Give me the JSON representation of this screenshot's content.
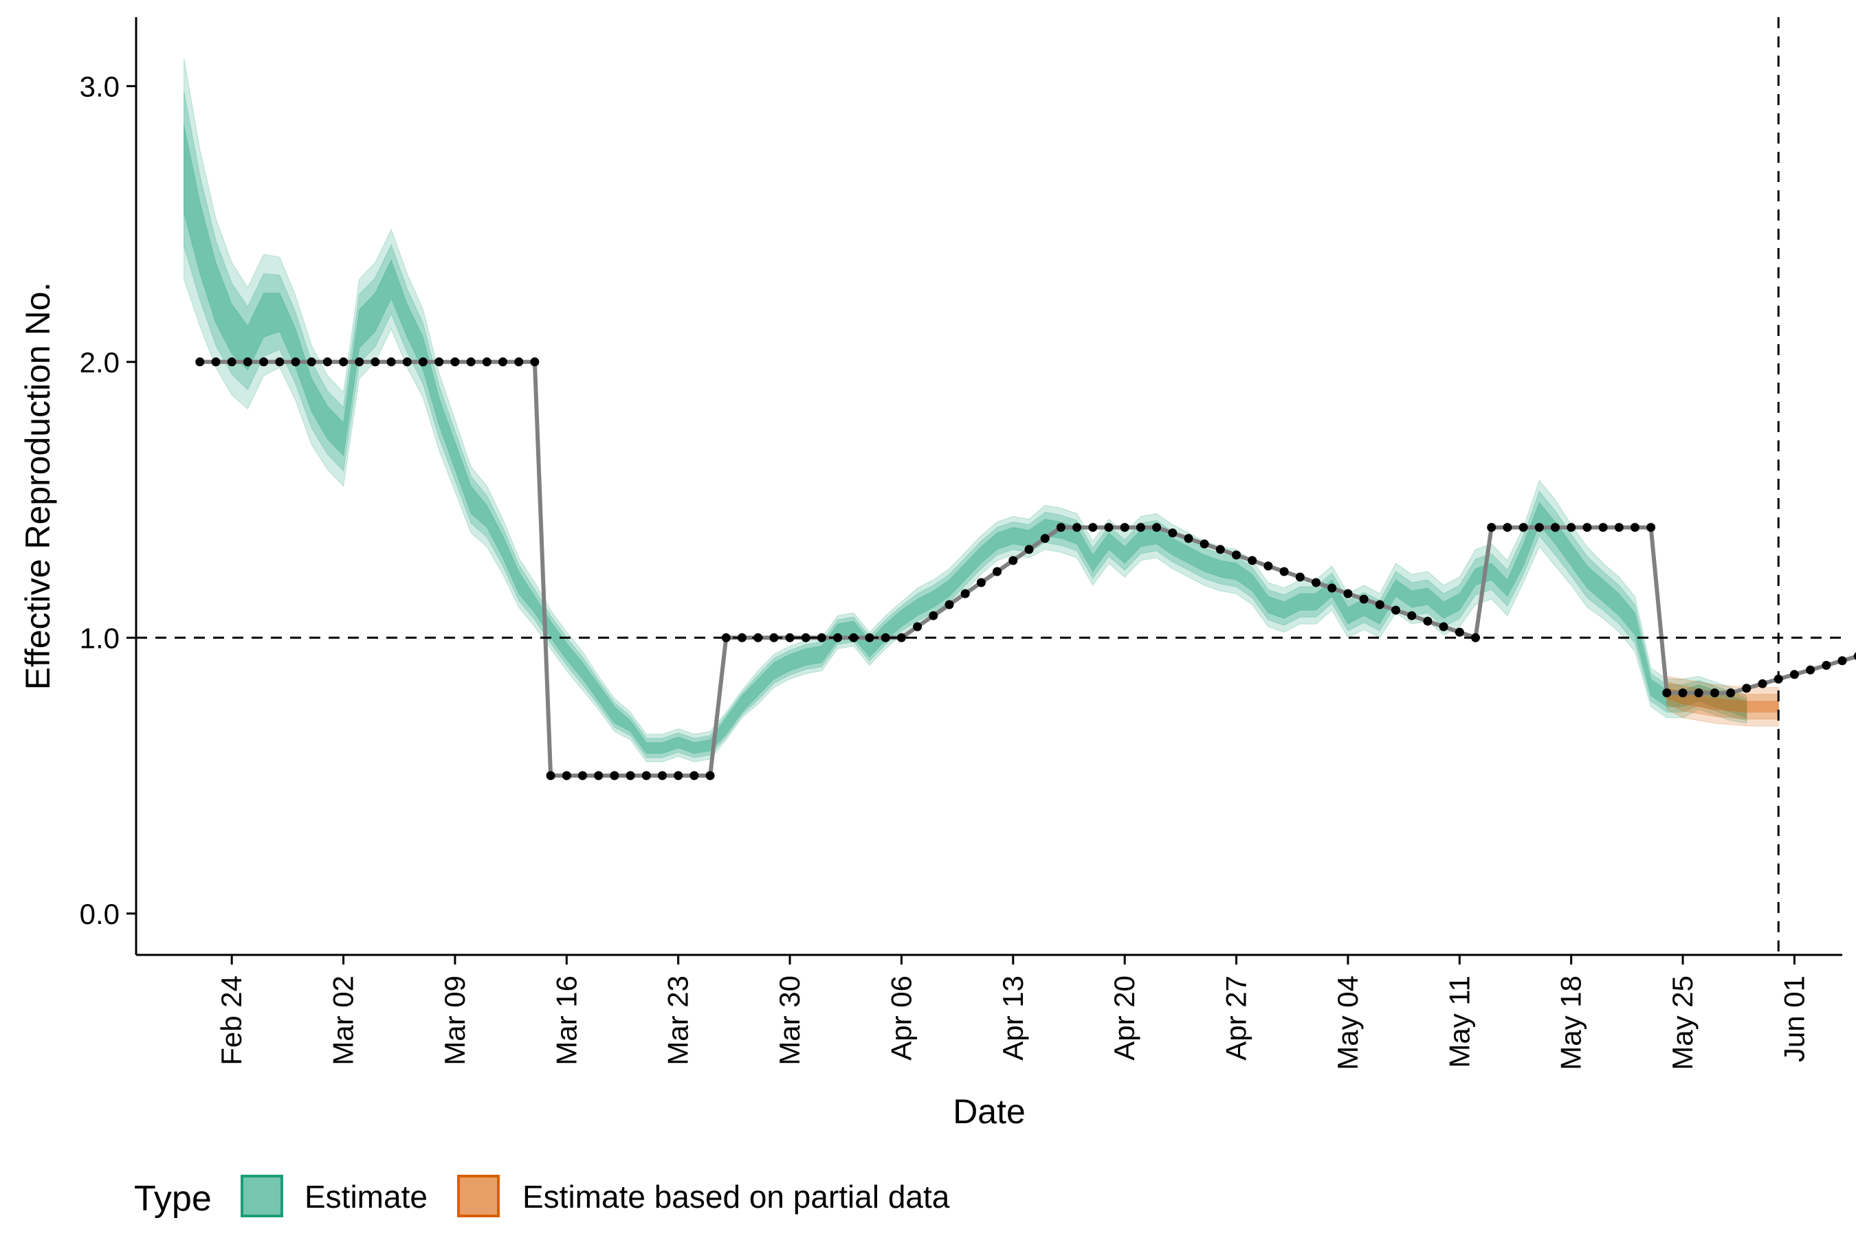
{
  "chart_data": {
    "type": "line",
    "xlabel": "Date",
    "ylabel": "Effective Reproduction No.",
    "x_range": [
      "2020-02-18",
      "2020-06-04"
    ],
    "ylim": [
      -0.15,
      3.25
    ],
    "y_ticks": [
      0.0,
      1.0,
      2.0,
      3.0
    ],
    "y_tick_labels": [
      "0.0",
      "1.0",
      "2.0",
      "3.0"
    ],
    "x_ticks": [
      "2020-02-24",
      "2020-03-02",
      "2020-03-09",
      "2020-03-16",
      "2020-03-23",
      "2020-03-30",
      "2020-04-06",
      "2020-04-13",
      "2020-04-20",
      "2020-04-27",
      "2020-05-04",
      "2020-05-11",
      "2020-05-18",
      "2020-05-25",
      "2020-06-01"
    ],
    "x_tick_labels": [
      "Feb 24",
      "Mar 02",
      "Mar 09",
      "Mar 16",
      "Mar 23",
      "Mar 30",
      "Apr 06",
      "Apr 13",
      "Apr 20",
      "Apr 27",
      "May 04",
      "May 11",
      "May 18",
      "May 25",
      "Jun 01"
    ],
    "reference_lines": {
      "hline": 1.0,
      "vline": "2020-05-31"
    },
    "grid": false,
    "legend": {
      "title": "Type",
      "position": "bottom",
      "items": [
        {
          "label": "Estimate",
          "color": "#1b9e77"
        },
        {
          "label": "Estimate based on partial data",
          "color": "#d95f02"
        }
      ]
    },
    "colors": {
      "estimate": "#1b9e77",
      "partial": "#d95f02",
      "truth_line": "#808080",
      "truth_points": "#000000"
    },
    "series": [
      {
        "name": "Estimate",
        "type": "ribbon",
        "x_start": "2020-02-21",
        "median": [
          2.7,
          2.45,
          2.25,
          2.12,
          2.05,
          2.17,
          2.18,
          2.05,
          1.88,
          1.78,
          1.72,
          2.12,
          2.18,
          2.3,
          2.15,
          2.03,
          1.82,
          1.66,
          1.5,
          1.44,
          1.33,
          1.2,
          1.12,
          1.03,
          0.95,
          0.88,
          0.8,
          0.72,
          0.68,
          0.6,
          0.6,
          0.62,
          0.6,
          0.61,
          0.68,
          0.76,
          0.82,
          0.88,
          0.91,
          0.93,
          0.94,
          1.02,
          1.03,
          0.96,
          1.02,
          1.07,
          1.11,
          1.14,
          1.18,
          1.24,
          1.3,
          1.35,
          1.37,
          1.36,
          1.4,
          1.39,
          1.37,
          1.27,
          1.35,
          1.3,
          1.36,
          1.37,
          1.33,
          1.3,
          1.27,
          1.25,
          1.24,
          1.2,
          1.12,
          1.1,
          1.13,
          1.13,
          1.18,
          1.08,
          1.11,
          1.08,
          1.18,
          1.14,
          1.15,
          1.1,
          1.13,
          1.22,
          1.24,
          1.18,
          1.3,
          1.45,
          1.38,
          1.3,
          1.22,
          1.17,
          1.12,
          1.05,
          0.82,
          0.78,
          0.78,
          0.8,
          0.78,
          0.76,
          0.74
        ],
        "inner_halfwidth": [
          0.16,
          0.13,
          0.11,
          0.09,
          0.08,
          0.08,
          0.07,
          0.07,
          0.06,
          0.06,
          0.06,
          0.07,
          0.07,
          0.07,
          0.06,
          0.06,
          0.05,
          0.05,
          0.05,
          0.04,
          0.04,
          0.04,
          0.03,
          0.03,
          0.03,
          0.03,
          0.03,
          0.03,
          0.02,
          0.02,
          0.02,
          0.02,
          0.02,
          0.02,
          0.03,
          0.03,
          0.03,
          0.03,
          0.03,
          0.03,
          0.03,
          0.03,
          0.03,
          0.03,
          0.03,
          0.03,
          0.03,
          0.03,
          0.03,
          0.03,
          0.03,
          0.03,
          0.03,
          0.03,
          0.03,
          0.03,
          0.03,
          0.03,
          0.03,
          0.03,
          0.03,
          0.03,
          0.03,
          0.03,
          0.03,
          0.03,
          0.03,
          0.03,
          0.03,
          0.03,
          0.03,
          0.03,
          0.03,
          0.03,
          0.03,
          0.03,
          0.03,
          0.03,
          0.03,
          0.03,
          0.03,
          0.03,
          0.03,
          0.03,
          0.04,
          0.04,
          0.04,
          0.04,
          0.04,
          0.04,
          0.04,
          0.04,
          0.03,
          0.03,
          0.03,
          0.03,
          0.03,
          0.03,
          0.03
        ],
        "outer_halfwidth": [
          0.4,
          0.32,
          0.27,
          0.24,
          0.22,
          0.22,
          0.2,
          0.19,
          0.18,
          0.17,
          0.17,
          0.18,
          0.18,
          0.18,
          0.17,
          0.16,
          0.14,
          0.13,
          0.12,
          0.11,
          0.1,
          0.09,
          0.08,
          0.07,
          0.07,
          0.07,
          0.06,
          0.06,
          0.05,
          0.05,
          0.05,
          0.05,
          0.05,
          0.05,
          0.05,
          0.05,
          0.06,
          0.06,
          0.06,
          0.06,
          0.06,
          0.06,
          0.06,
          0.06,
          0.06,
          0.06,
          0.07,
          0.07,
          0.07,
          0.07,
          0.07,
          0.07,
          0.07,
          0.07,
          0.08,
          0.08,
          0.08,
          0.08,
          0.08,
          0.08,
          0.08,
          0.08,
          0.08,
          0.08,
          0.08,
          0.08,
          0.08,
          0.08,
          0.08,
          0.08,
          0.08,
          0.08,
          0.08,
          0.08,
          0.08,
          0.08,
          0.09,
          0.09,
          0.09,
          0.09,
          0.09,
          0.1,
          0.1,
          0.1,
          0.1,
          0.12,
          0.12,
          0.11,
          0.11,
          0.1,
          0.1,
          0.1,
          0.07,
          0.07,
          0.07,
          0.06,
          0.06,
          0.06,
          0.05
        ]
      },
      {
        "name": "Estimate based on partial data",
        "type": "ribbon",
        "x_start": "2020-05-24",
        "median": [
          0.8,
          0.78,
          0.77,
          0.76,
          0.755,
          0.75,
          0.75,
          0.75
        ],
        "inner_halfwidth": [
          0.02,
          0.02,
          0.02,
          0.02,
          0.02,
          0.02,
          0.02,
          0.02
        ],
        "outer_halfwidth": [
          0.06,
          0.07,
          0.07,
          0.07,
          0.07,
          0.07,
          0.07,
          0.07
        ]
      },
      {
        "name": "",
        "type": "line+points",
        "x_start": "2020-02-22",
        "values": [
          2,
          2,
          2,
          2,
          2,
          2,
          2,
          2,
          2,
          2,
          2,
          2,
          2,
          2,
          2,
          2,
          2,
          2,
          2,
          2,
          2,
          2,
          0.5,
          0.5,
          0.5,
          0.5,
          0.5,
          0.5,
          0.5,
          0.5,
          0.5,
          0.5,
          0.5,
          1,
          1,
          1,
          1,
          1,
          1,
          1,
          1,
          1,
          1,
          1,
          1,
          1.04,
          1.08,
          1.12,
          1.16,
          1.2,
          1.24,
          1.28,
          1.32,
          1.36,
          1.4,
          1.4,
          1.4,
          1.4,
          1.4,
          1.4,
          1.4,
          1.38,
          1.36,
          1.34,
          1.32,
          1.3,
          1.28,
          1.26,
          1.24,
          1.22,
          1.2,
          1.18,
          1.16,
          1.14,
          1.12,
          1.1,
          1.08,
          1.06,
          1.04,
          1.02,
          1,
          1.4,
          1.4,
          1.4,
          1.4,
          1.4,
          1.4,
          1.4,
          1.4,
          1.4,
          1.4,
          1.4,
          0.8,
          0.8,
          0.8,
          0.8,
          0.8,
          0.8167,
          0.8333,
          0.85,
          0.8667,
          0.8833,
          0.9,
          0.9167,
          0.9333,
          0.95,
          0.9667,
          0.9833,
          1
        ]
      }
    ]
  }
}
